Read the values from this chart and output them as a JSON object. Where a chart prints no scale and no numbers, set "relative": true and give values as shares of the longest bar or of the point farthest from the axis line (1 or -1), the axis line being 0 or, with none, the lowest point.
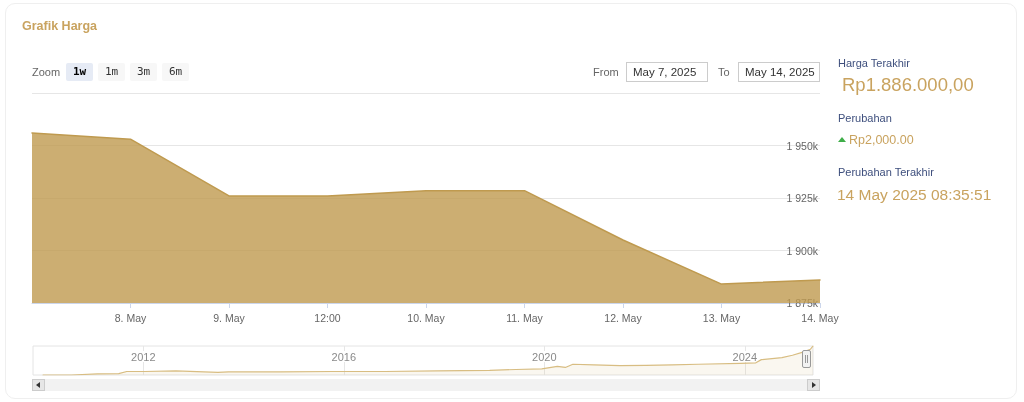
{
  "chart_data": [
    {
      "type": "area",
      "title": "Grafik Harga",
      "categories": [
        null,
        "8. May",
        "9. May",
        "12:00",
        "10. May",
        "11. May",
        "12. May",
        "13. May",
        "14. May"
      ],
      "values": [
        1956000,
        1953000,
        1926000,
        1926000,
        1928500,
        1928500,
        1905000,
        1884000,
        1886000
      ],
      "color": "#bf9a4f",
      "ylim": [
        1875000,
        1975000
      ],
      "yticks": [
        {
          "value": 1875000,
          "label": "1 875k"
        },
        {
          "value": 1900000,
          "label": "1 900k"
        },
        {
          "value": 1925000,
          "label": "1 925k"
        },
        {
          "value": 1950000,
          "label": "1 950k"
        },
        {
          "value": 1975000,
          "label": null
        }
      ],
      "grid": "y",
      "annotations": [
        "Zoom",
        "1w",
        "1m",
        "3m",
        "6m",
        "From",
        "May 7, 2025",
        "To",
        "May 14, 2025",
        "Harga Terakhir",
        "Rp1.886.000,00",
        "Perubahan",
        "Rp2,000.00",
        "Perubahan Terakhir",
        "14 May 2025 08:35:51"
      ]
    },
    {
      "type": "area",
      "x": [
        2010.0,
        2010.57,
        2011.09,
        2011.51,
        2011.67,
        2012.03,
        2012.65,
        2013.49,
        2013.7,
        2014.74,
        2015.78,
        2016.82,
        2017.86,
        2018.91,
        2019.43,
        2019.95,
        2020.26,
        2020.42,
        2020.57,
        2020.99,
        2021.51,
        2022.03,
        2022.55,
        2023.07,
        2023.91,
        2024.22,
        2024.33,
        2024.74,
        2024.95,
        2025.16,
        2025.31,
        2025.36
      ],
      "values": [
        0,
        0,
        0.04,
        0.05,
        0.12,
        0.12,
        0.14,
        0.09,
        0.11,
        0.11,
        0.12,
        0.12,
        0.14,
        0.16,
        0.19,
        0.21,
        0.3,
        0.26,
        0.37,
        0.35,
        0.32,
        0.33,
        0.35,
        0.37,
        0.4,
        0.42,
        0.53,
        0.6,
        0.68,
        0.79,
        0.89,
        1
      ],
      "relative": true,
      "color": "#d8bd82",
      "xlim": [
        2009.8,
        2025.36
      ],
      "xticks": [
        2012,
        2016,
        2020,
        2024
      ],
      "grid": "x",
      "tick_labels": "x"
    }
  ]
}
